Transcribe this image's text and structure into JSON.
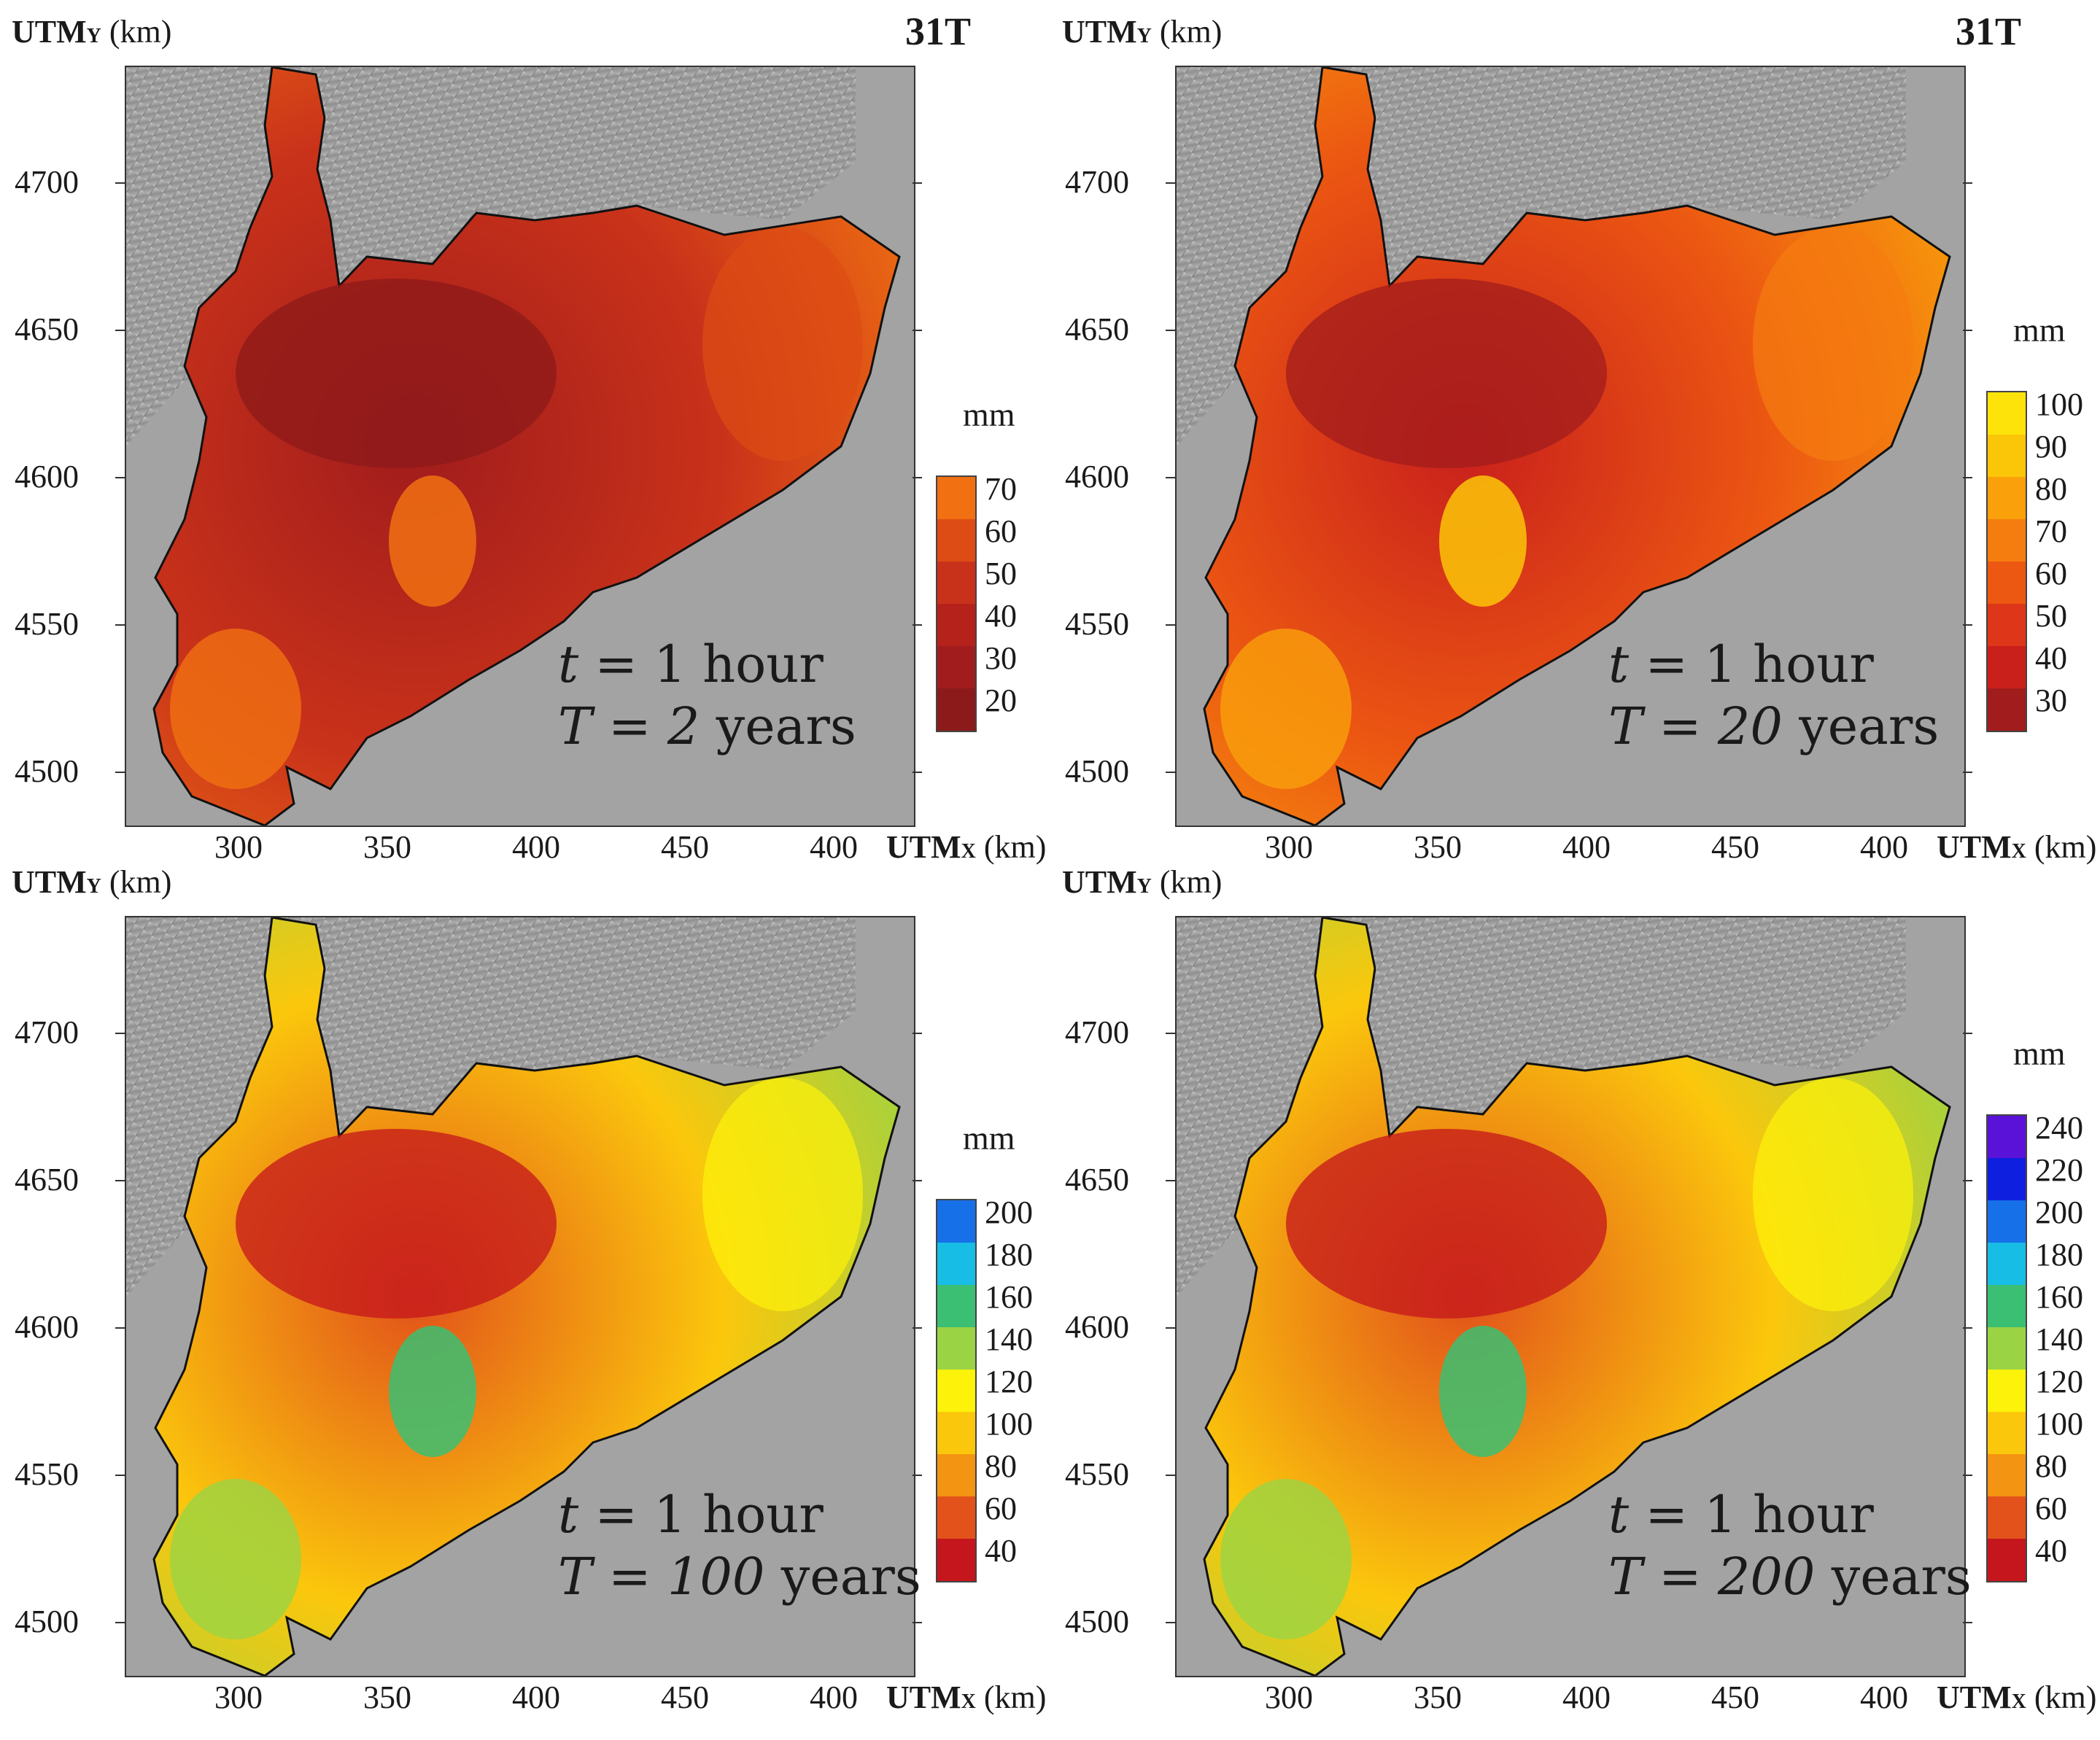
{
  "figure": {
    "panels": [
      {
        "id": "p1",
        "y_axis_label_main": "UTM",
        "y_axis_label_sub": "Y",
        "y_axis_label_unit": "(km)",
        "zone_label": "31T",
        "y_ticks": [
          "4700",
          "4650",
          "4600",
          "4550",
          "4500"
        ],
        "x_ticks": [
          "300",
          "350",
          "400",
          "450",
          "400"
        ],
        "x_axis_label_main": "UTM",
        "x_axis_label_sub": "X",
        "x_axis_label_unit": "(km)",
        "annotation_duration": "t = 1 hour",
        "annotation_duration_var": "t",
        "annotation_duration_rest": " = 1 hour",
        "annotation_period_var": "T",
        "annotation_period_value": " = 2",
        "annotation_period_unit": " years",
        "colorbar_unit": "mm",
        "colorbar_labels": [
          "70",
          "60",
          "50",
          "40",
          "30",
          "20"
        ],
        "colorbar_colors": [
          "#8c1a1a",
          "#a11c1c",
          "#b5211b",
          "#c9321a",
          "#dd4c14",
          "#f07012"
        ]
      },
      {
        "id": "p2",
        "y_axis_label_main": "UTM",
        "y_axis_label_sub": "Y",
        "y_axis_label_unit": "(km)",
        "zone_label": "31T",
        "y_ticks": [
          "4700",
          "4650",
          "4600",
          "4550",
          "4500"
        ],
        "x_ticks": [
          "300",
          "350",
          "400",
          "450",
          "400"
        ],
        "x_axis_label_main": "UTM",
        "x_axis_label_sub": "X",
        "x_axis_label_unit": "(km)",
        "annotation_duration_var": "t",
        "annotation_duration_rest": " = 1 hour",
        "annotation_period_var": "T",
        "annotation_period_value": " = 20",
        "annotation_period_unit": " years",
        "colorbar_unit": "mm",
        "colorbar_labels": [
          "100",
          "90",
          "80",
          "70",
          "60",
          "50",
          "40",
          "30"
        ],
        "colorbar_colors": [
          "#a11c1c",
          "#c9201c",
          "#dd3618",
          "#ec5712",
          "#f57c0f",
          "#f9a00b",
          "#fbc508",
          "#fde30a"
        ]
      },
      {
        "id": "p3",
        "y_axis_label_main": "UTM",
        "y_axis_label_sub": "Y",
        "y_axis_label_unit": "(km)",
        "zone_label": "",
        "y_ticks": [
          "4700",
          "4650",
          "4600",
          "4550",
          "4500"
        ],
        "x_ticks": [
          "300",
          "350",
          "400",
          "450",
          "400"
        ],
        "x_axis_label_main": "UTM",
        "x_axis_label_sub": "X",
        "x_axis_label_unit": "(km)",
        "annotation_duration_var": "t",
        "annotation_duration_rest": " = 1 hour",
        "annotation_period_var": "T",
        "annotation_period_value": " = 100",
        "annotation_period_unit": " years",
        "colorbar_unit": "mm",
        "colorbar_labels": [
          "200",
          "180",
          "160",
          "140",
          "120",
          "100",
          "80",
          "60",
          "40"
        ],
        "colorbar_colors": [
          "#c4161c",
          "#e2521a",
          "#f39412",
          "#fbc70c",
          "#fdf20a",
          "#9ad444",
          "#3bbf72",
          "#18bde6",
          "#1670e8"
        ]
      },
      {
        "id": "p4",
        "y_axis_label_main": "UTM",
        "y_axis_label_sub": "Y",
        "y_axis_label_unit": "(km)",
        "zone_label": "",
        "y_ticks": [
          "4700",
          "4650",
          "4600",
          "4550",
          "4500"
        ],
        "x_ticks": [
          "300",
          "350",
          "400",
          "450",
          "400"
        ],
        "x_axis_label_main": "UTM",
        "x_axis_label_sub": "X",
        "x_axis_label_unit": "(km)",
        "annotation_duration_var": "t",
        "annotation_duration_rest": " = 1 hour",
        "annotation_period_var": "T",
        "annotation_period_value": " = 200",
        "annotation_period_unit": " years",
        "colorbar_unit": "mm",
        "colorbar_labels": [
          "240",
          "220",
          "200",
          "180",
          "160",
          "140",
          "120",
          "100",
          "80",
          "60",
          "40"
        ],
        "colorbar_colors": [
          "#c4161c",
          "#e2521a",
          "#f39412",
          "#fbc70c",
          "#fdf20a",
          "#9ad444",
          "#3bbf72",
          "#18bde6",
          "#1670e8",
          "#0f1fe0",
          "#5a12d8"
        ]
      }
    ]
  }
}
